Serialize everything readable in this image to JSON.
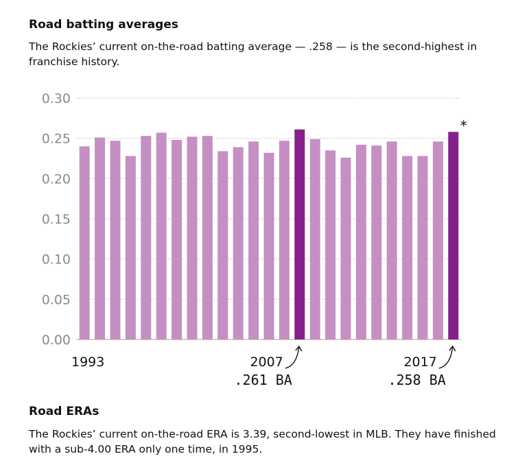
{
  "header": {
    "title": "Road batting averages",
    "subtitle": "The Rockies’ current on-the-road batting average — .258 — is the second-highest in franchise history."
  },
  "footer": {
    "title": "Road ERAs",
    "text": "The Rockies’ current on-the-road ERA is 3.39, second-lowest in MLB. They have finished with a sub-4.00 ERA only one time, in 1995."
  },
  "colors": {
    "bar": "#c58fc3",
    "highlight": "#84208a",
    "grid": "#bdbdbd",
    "tick": "#8a8a8a"
  },
  "chart_data": {
    "type": "bar",
    "title": "Road batting averages",
    "xlabel": "",
    "ylabel": "",
    "ylim": [
      0,
      0.3
    ],
    "yticks": [
      "0.00",
      "0.05",
      "0.10",
      "0.15",
      "0.20",
      "0.25",
      "0.30"
    ],
    "grid": true,
    "x_labels": [
      {
        "label": "1993",
        "category": "1993"
      },
      {
        "label": "2007",
        "category": "2007"
      },
      {
        "label": "2017",
        "category": "2017"
      }
    ],
    "categories": [
      "1993",
      "1994",
      "1995",
      "1996",
      "1997",
      "1998",
      "1999",
      "2000",
      "2001",
      "2002",
      "2003",
      "2004",
      "2005",
      "2006",
      "2007",
      "2008",
      "2009",
      "2010",
      "2011",
      "2012",
      "2013",
      "2014",
      "2015",
      "2016",
      "2017"
    ],
    "values": [
      0.24,
      0.251,
      0.247,
      0.228,
      0.253,
      0.257,
      0.248,
      0.252,
      0.253,
      0.234,
      0.239,
      0.246,
      0.232,
      0.247,
      0.261,
      0.249,
      0.235,
      0.226,
      0.242,
      0.241,
      0.246,
      0.228,
      0.228,
      0.246,
      0.258
    ],
    "highlight": [
      "2007",
      "2017"
    ],
    "annotations": [
      {
        "category": "2007",
        "text": ".261  BA"
      },
      {
        "category": "2017",
        "text": ".258  BA",
        "marker": "*"
      }
    ]
  }
}
